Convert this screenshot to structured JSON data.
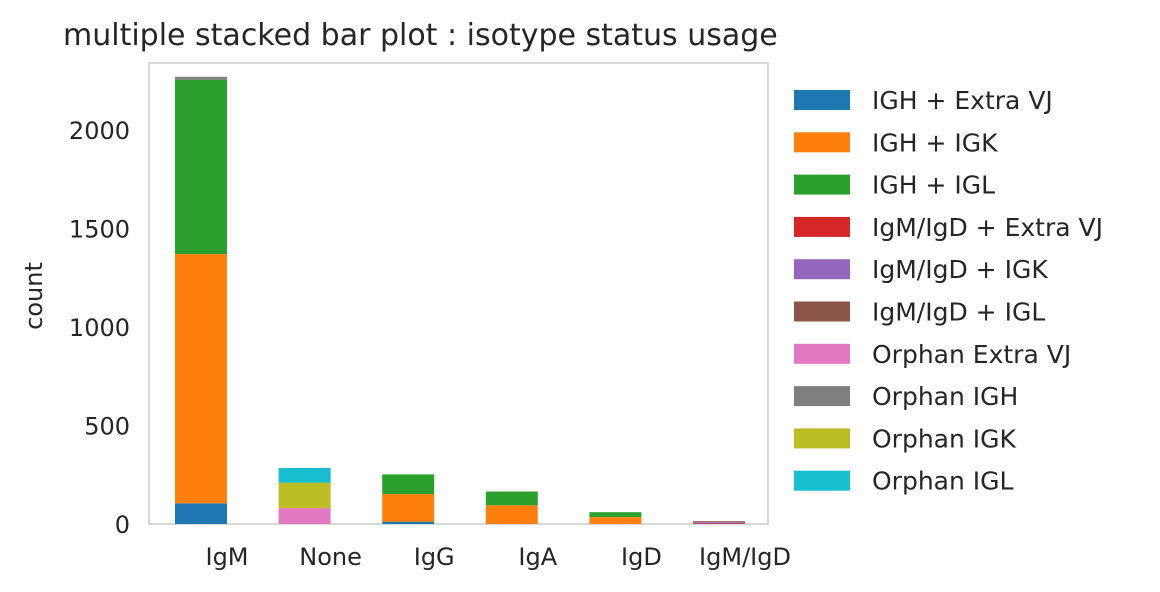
{
  "chart_data": {
    "type": "bar",
    "stacked": true,
    "title": "multiple stacked bar plot : isotype status usage",
    "xlabel": "",
    "ylabel": "count",
    "ylim": [
      0,
      2340
    ],
    "yticks": [
      0,
      500,
      1000,
      1500,
      2000
    ],
    "grid": false,
    "legend_position": "outside-right",
    "categories": [
      "IgM",
      "None",
      "IgG",
      "IgA",
      "IgD",
      "IgM/IgD"
    ],
    "series": [
      {
        "name": "IGH + Extra VJ",
        "color": "#1f77b4",
        "values": [
          105,
          0,
          12,
          0,
          0,
          0
        ]
      },
      {
        "name": "IGH + IGK",
        "color": "#ff7f0e",
        "values": [
          1265,
          0,
          140,
          95,
          35,
          0
        ]
      },
      {
        "name": "IGH + IGL",
        "color": "#2ca02c",
        "values": [
          885,
          0,
          100,
          70,
          25,
          0
        ]
      },
      {
        "name": "IgM/IgD + Extra VJ",
        "color": "#d62728",
        "values": [
          0,
          0,
          0,
          0,
          0,
          3
        ]
      },
      {
        "name": "IgM/IgD + IGK",
        "color": "#9467bd",
        "values": [
          0,
          0,
          0,
          0,
          0,
          6
        ]
      },
      {
        "name": "IgM/IgD + IGL",
        "color": "#8c564b",
        "values": [
          0,
          0,
          0,
          0,
          0,
          5
        ]
      },
      {
        "name": "Orphan Extra VJ",
        "color": "#e377c2",
        "values": [
          0,
          80,
          0,
          0,
          0,
          0
        ]
      },
      {
        "name": "Orphan IGH",
        "color": "#7f7f7f",
        "values": [
          15,
          0,
          0,
          0,
          0,
          0
        ]
      },
      {
        "name": "Orphan IGK",
        "color": "#bcbd22",
        "values": [
          0,
          130,
          0,
          0,
          0,
          0
        ]
      },
      {
        "name": "Orphan IGL",
        "color": "#17becf",
        "values": [
          0,
          75,
          0,
          0,
          0,
          0
        ]
      }
    ]
  }
}
